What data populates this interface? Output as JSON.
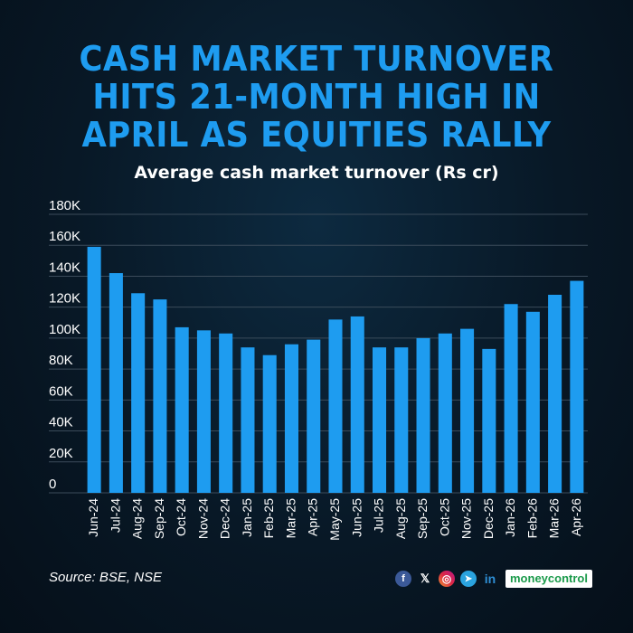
{
  "headline": {
    "line1": "CASH MARKET TURNOVER",
    "line2": "HITS 21-MONTH HIGH IN",
    "line3": "APRIL AS EQUITIES RALLY"
  },
  "colors": {
    "bar": "#1e9cf0",
    "headline": "#1e9cf0",
    "grid": "#3b4b5a"
  },
  "footer": {
    "source": "Source: BSE, NSE",
    "social_icons": [
      "facebook-icon",
      "x-icon",
      "instagram-icon",
      "telegram-icon",
      "linkedin-icon"
    ],
    "brand": "moneycontrol"
  },
  "chart_data": {
    "type": "bar",
    "title": "Average cash market turnover (Rs cr)",
    "xlabel": "",
    "ylabel": "",
    "ylim": [
      0,
      180000
    ],
    "grid": true,
    "yticks": [
      {
        "value": 0,
        "label": "0"
      },
      {
        "value": 20000,
        "label": "20K"
      },
      {
        "value": 40000,
        "label": "40K"
      },
      {
        "value": 60000,
        "label": "60K"
      },
      {
        "value": 80000,
        "label": "80K"
      },
      {
        "value": 100000,
        "label": "100K"
      },
      {
        "value": 120000,
        "label": "120K"
      },
      {
        "value": 140000,
        "label": "140K"
      },
      {
        "value": 160000,
        "label": "160K"
      },
      {
        "value": 180000,
        "label": "180K"
      }
    ],
    "categories": [
      "Jun-24",
      "Jul-24",
      "Aug-24",
      "Sep-24",
      "Oct-24",
      "Nov-24",
      "Dec-24",
      "Jan-25",
      "Feb-25",
      "Mar-25",
      "Apr-25",
      "May-25",
      "Jun-25",
      "Jul-25",
      "Aug-25",
      "Sep-25",
      "Oct-25",
      "Nov-25",
      "Dec-25",
      "Jan-26",
      "Feb-26",
      "Mar-26",
      "Apr-26"
    ],
    "values": [
      159000,
      142000,
      129000,
      125000,
      107000,
      105000,
      103000,
      94000,
      89000,
      96000,
      99000,
      112000,
      114000,
      94000,
      94000,
      100000,
      103000,
      106000,
      93000,
      122000,
      117000,
      128000,
      137000
    ]
  }
}
